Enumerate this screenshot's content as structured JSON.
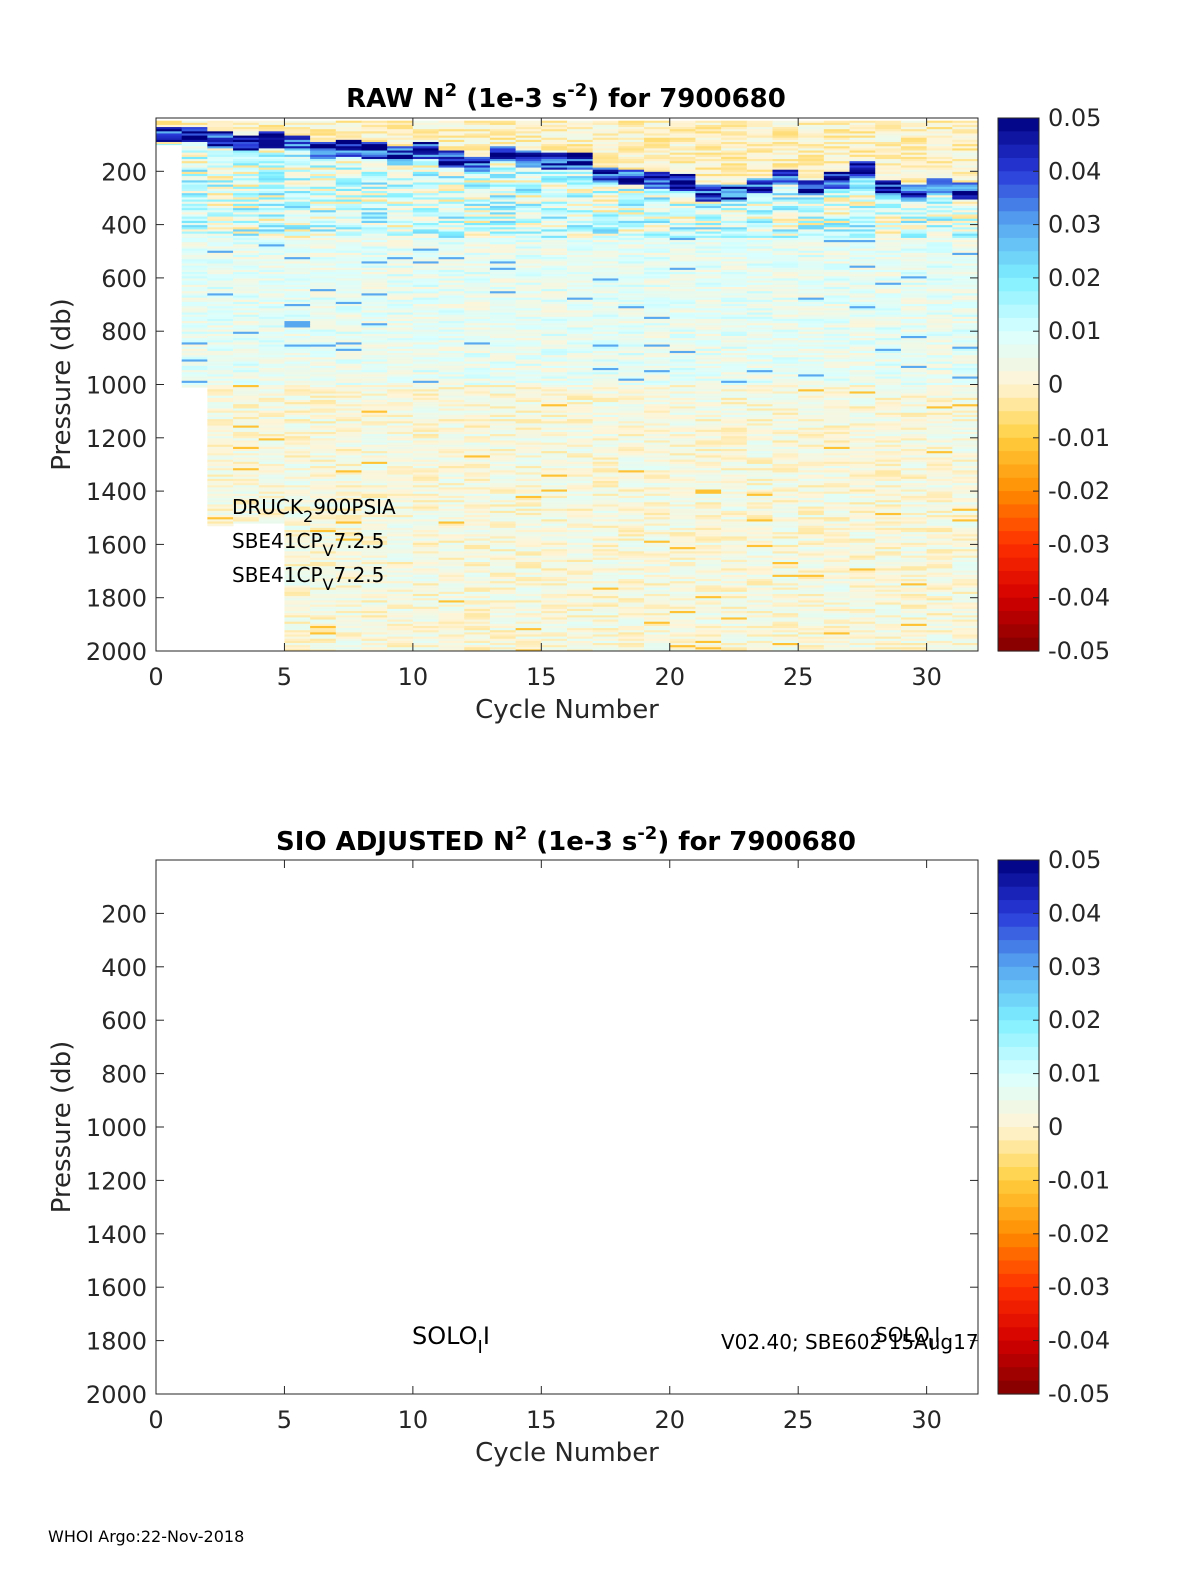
{
  "footer": "WHOI Argo:22-Nov-2018",
  "colorbar": {
    "min": -0.05,
    "max": 0.05,
    "tick_labels": [
      "0.05",
      "0.04",
      "0.03",
      "0.02",
      "0.01",
      "0",
      "-0.01",
      "-0.02",
      "-0.03",
      "-0.04",
      "-0.05"
    ],
    "colors": [
      "#7f0000",
      "#d40000",
      "#ff3000",
      "#ff8c00",
      "#ffd040",
      "#fff4d6",
      "#d8ffff",
      "#7fefff",
      "#58a8f0",
      "#2838d8",
      "#00007f"
    ]
  },
  "chart_data": [
    {
      "type": "heatmap",
      "title": {
        "prefix": "RAW N",
        "sup1": "2",
        "mid": " (1e-3 s",
        "sup2": "-2",
        "suffix": ") for 7900680"
      },
      "xlabel": "Cycle Number",
      "ylabel": "Pressure (db)",
      "xlim": [
        0,
        32
      ],
      "ylim": [
        2000,
        0
      ],
      "x_ticks": [
        "0",
        "5",
        "10",
        "15",
        "20",
        "25",
        "30"
      ],
      "y_ticks": [
        "200",
        "400",
        "600",
        "800",
        "1000",
        "1200",
        "1400",
        "1600",
        "1800",
        "2000"
      ],
      "cycles": [
        0,
        1,
        2,
        3,
        4,
        5,
        6,
        7,
        8,
        9,
        10,
        11,
        12,
        13,
        14,
        15,
        16,
        17,
        18,
        19,
        20,
        21,
        22,
        23,
        24,
        25,
        26,
        27,
        28,
        29,
        30,
        31
      ],
      "max_pressure": [
        100,
        1010,
        1530,
        1520,
        1520,
        2000,
        2000,
        2000,
        2000,
        2000,
        2000,
        2000,
        2000,
        2000,
        2000,
        2000,
        2000,
        2000,
        2000,
        2000,
        2000,
        2000,
        2000,
        2000,
        2000,
        2000,
        2000,
        2000,
        2000,
        2000,
        2000,
        2000
      ],
      "thermocline_pressure": [
        60,
        60,
        80,
        90,
        80,
        90,
        120,
        110,
        120,
        130,
        120,
        150,
        170,
        130,
        150,
        160,
        160,
        210,
        220,
        230,
        240,
        280,
        280,
        250,
        220,
        260,
        230,
        190,
        260,
        280,
        250,
        270
      ],
      "annotations": [
        {
          "base": "DRUCK",
          "sub": "2",
          "rest": "900PSIA"
        },
        {
          "base": "SBE41CP",
          "sub": "V",
          "rest": "7.2.5"
        },
        {
          "base": "SBE41CP",
          "sub": "V",
          "rest": "7.2.5"
        }
      ]
    },
    {
      "type": "heatmap",
      "title": {
        "prefix": "SIO  ADJUSTED N",
        "sup1": "2",
        "mid": " (1e-3 s",
        "sup2": "-2",
        "suffix": ") for 7900680"
      },
      "xlabel": "Cycle Number",
      "ylabel": "Pressure (db)",
      "xlim": [
        0,
        32
      ],
      "ylim": [
        2000,
        0
      ],
      "x_ticks": [
        "0",
        "5",
        "10",
        "15",
        "20",
        "25",
        "30"
      ],
      "y_ticks": [
        "200",
        "400",
        "600",
        "800",
        "1000",
        "1200",
        "1400",
        "1600",
        "1800",
        "2000"
      ],
      "cycles": [],
      "annotations": [
        {
          "base": "SOLO",
          "sub": "I",
          "rest": "I"
        },
        {
          "base": "V02.40; SBE602 15Aug17",
          "sub": "",
          "rest": ""
        },
        {
          "base": "SOLO",
          "sub": "I",
          "rest": "I"
        }
      ]
    }
  ]
}
